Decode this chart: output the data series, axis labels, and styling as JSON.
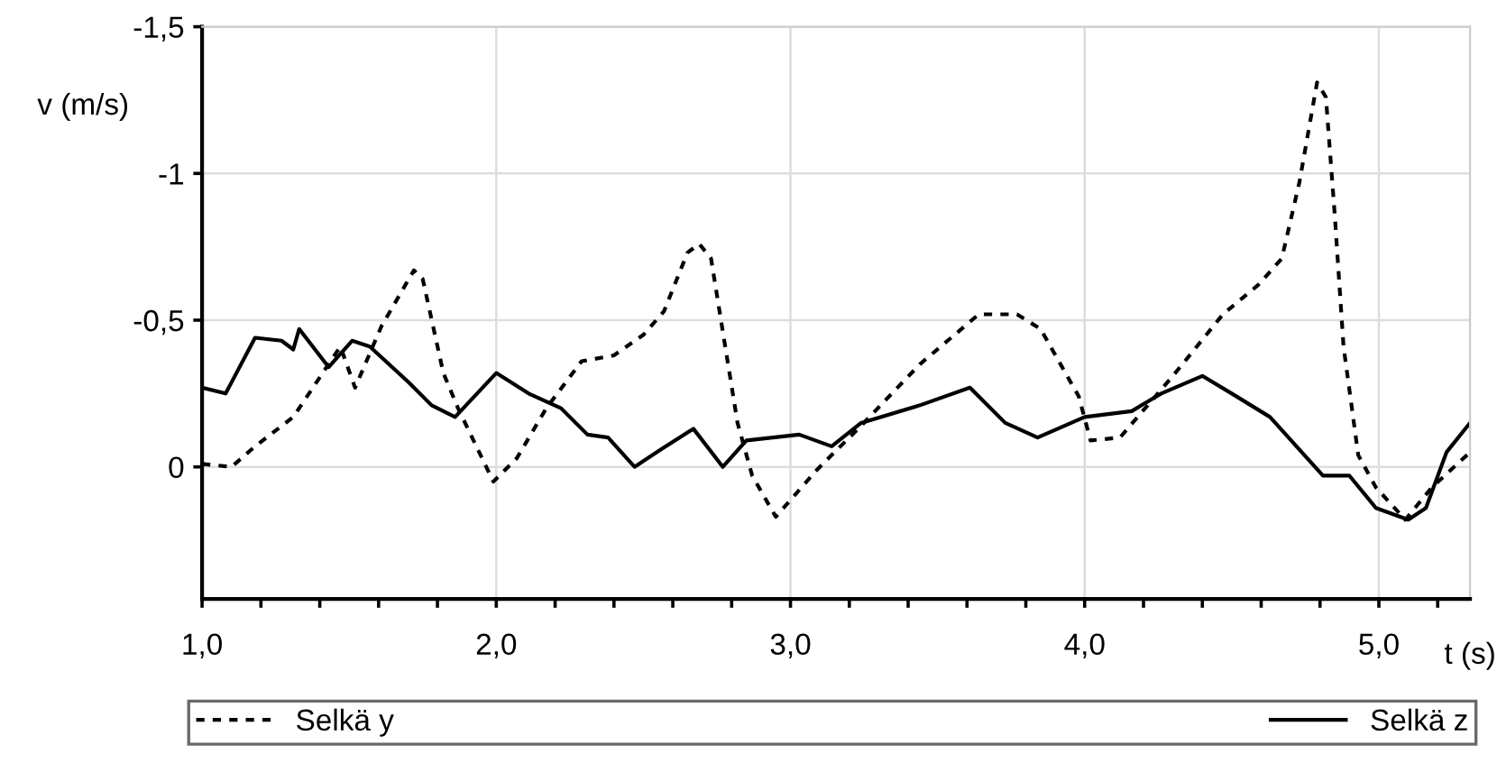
{
  "chart_data": {
    "type": "line",
    "xlabel": "t (s)",
    "ylabel": "v (m/s)",
    "xlim": [
      1.0,
      5.31
    ],
    "ylim": [
      0.45,
      -1.5
    ],
    "xticks": [
      {
        "value": 1.0,
        "label": "1,0"
      },
      {
        "value": 1.2,
        "label": null
      },
      {
        "value": 1.4,
        "label": null
      },
      {
        "value": 1.6,
        "label": null
      },
      {
        "value": 1.8,
        "label": null
      },
      {
        "value": 2.0,
        "label": "2,0"
      },
      {
        "value": 2.2,
        "label": null
      },
      {
        "value": 2.4,
        "label": null
      },
      {
        "value": 2.6,
        "label": null
      },
      {
        "value": 2.8,
        "label": null
      },
      {
        "value": 3.0,
        "label": "3,0"
      },
      {
        "value": 3.2,
        "label": null
      },
      {
        "value": 3.4,
        "label": null
      },
      {
        "value": 3.6,
        "label": null
      },
      {
        "value": 3.8,
        "label": null
      },
      {
        "value": 4.0,
        "label": "4,0"
      },
      {
        "value": 4.2,
        "label": null
      },
      {
        "value": 4.4,
        "label": null
      },
      {
        "value": 4.6,
        "label": null
      },
      {
        "value": 4.8,
        "label": null
      },
      {
        "value": 5.0,
        "label": "5,0"
      },
      {
        "value": 5.2,
        "label": null
      }
    ],
    "yticks": [
      {
        "value": -1.5,
        "label": "-1,5"
      },
      -1,
      {
        "value": -0.5,
        "label": "-0,5"
      },
      0
    ],
    "grid": true,
    "legend": "bottom",
    "marker": "none",
    "series": [
      {
        "name": "Selkä y",
        "color": "#000000",
        "line_style": "dashed",
        "x": [
          1.0,
          1.1,
          1.18,
          1.31,
          1.41,
          1.47,
          1.52,
          1.61,
          1.72,
          1.75,
          1.82,
          1.87,
          1.99,
          2.07,
          2.17,
          2.29,
          2.4,
          2.5,
          2.57,
          2.65,
          2.69,
          2.73,
          2.82,
          2.87,
          2.95,
          3.09,
          3.24,
          3.44,
          3.64,
          3.77,
          3.85,
          3.98,
          4.02,
          4.12,
          4.3,
          4.47,
          4.59,
          4.67,
          4.73,
          4.79,
          4.82,
          4.85,
          4.88,
          4.93,
          4.99,
          5.09,
          5.18,
          5.31
        ],
        "values": [
          -0.01,
          0,
          -0.07,
          -0.17,
          -0.32,
          -0.41,
          -0.27,
          -0.48,
          -0.67,
          -0.64,
          -0.32,
          -0.2,
          0.05,
          -0.03,
          -0.2,
          -0.36,
          -0.38,
          -0.45,
          -0.53,
          -0.73,
          -0.76,
          -0.71,
          -0.15,
          0.03,
          0.17,
          0.01,
          -0.14,
          -0.35,
          -0.52,
          -0.52,
          -0.47,
          -0.24,
          -0.09,
          -0.1,
          -0.31,
          -0.52,
          -0.62,
          -0.71,
          -0.97,
          -1.31,
          -1.26,
          -0.86,
          -0.41,
          -0.04,
          0.07,
          0.18,
          0.07,
          -0.05
        ]
      },
      {
        "name": "Selkä z",
        "color": "#000000",
        "line_style": "solid",
        "x": [
          1.0,
          1.08,
          1.18,
          1.27,
          1.31,
          1.33,
          1.43,
          1.51,
          1.57,
          1.7,
          1.78,
          1.86,
          2.0,
          2.11,
          2.22,
          2.31,
          2.38,
          2.47,
          2.56,
          2.67,
          2.77,
          2.85,
          3.03,
          3.14,
          3.24,
          3.44,
          3.61,
          3.73,
          3.84,
          4.0,
          4.16,
          4.26,
          4.4,
          4.5,
          4.63,
          4.81,
          4.9,
          4.99,
          5.1,
          5.16,
          5.23,
          5.31
        ],
        "values": [
          -0.27,
          -0.25,
          -0.44,
          -0.43,
          -0.4,
          -0.47,
          -0.34,
          -0.43,
          -0.41,
          -0.29,
          -0.21,
          -0.17,
          -0.32,
          -0.25,
          -0.2,
          -0.11,
          -0.1,
          0,
          -0.06,
          -0.13,
          0,
          -0.09,
          -0.11,
          -0.07,
          -0.15,
          -0.21,
          -0.27,
          -0.15,
          -0.1,
          -0.17,
          -0.19,
          -0.25,
          -0.31,
          -0.25,
          -0.17,
          0.03,
          0.03,
          0.14,
          0.18,
          0.14,
          -0.05,
          -0.15
        ]
      }
    ]
  }
}
